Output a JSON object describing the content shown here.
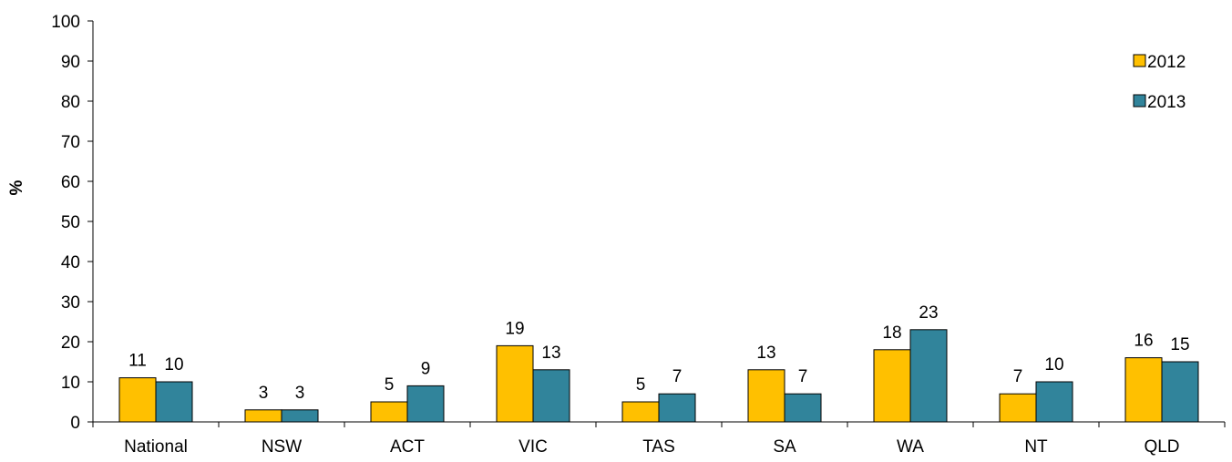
{
  "chart_data": {
    "type": "bar",
    "title": "",
    "xlabel": "",
    "ylabel": "%",
    "ylim": [
      0,
      100
    ],
    "yticks": [
      0,
      10,
      20,
      30,
      40,
      50,
      60,
      70,
      80,
      90,
      100
    ],
    "categories": [
      "National",
      "NSW",
      "ACT",
      "VIC",
      "TAS",
      "SA",
      "WA",
      "NT",
      "QLD"
    ],
    "series": [
      {
        "name": "2012",
        "color": "#FFC000",
        "values": [
          11,
          3,
          5,
          19,
          5,
          13,
          18,
          7,
          16
        ]
      },
      {
        "name": "2013",
        "color": "#31849B",
        "values": [
          10,
          3,
          9,
          13,
          7,
          7,
          23,
          10,
          15
        ]
      }
    ],
    "grid": false,
    "legend": "top-right"
  }
}
